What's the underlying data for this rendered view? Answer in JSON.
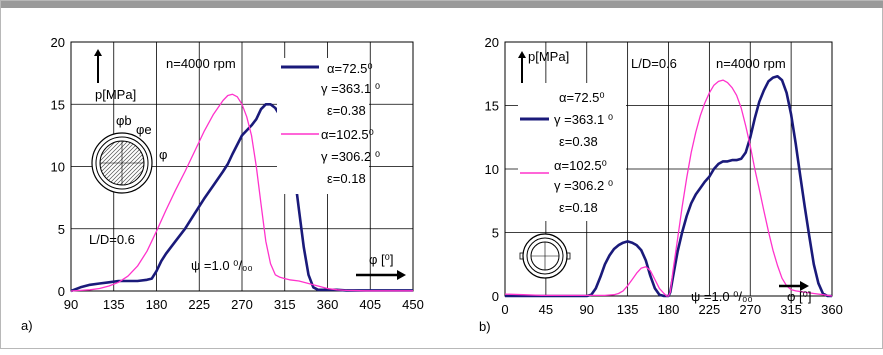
{
  "chart_data": [
    {
      "type": "line",
      "panel_label": "a)",
      "xlim": [
        90,
        450
      ],
      "ylim": [
        0,
        20
      ],
      "x_ticks": [
        90,
        135,
        180,
        225,
        270,
        315,
        360,
        405,
        450
      ],
      "y_ticks": [
        0,
        5,
        10,
        15,
        20
      ],
      "grid": true,
      "ylabel": "p[MPa]",
      "xlabel": "φ [⁰]",
      "annotations": {
        "speed": "n=4000 rpm",
        "ld": "L/D=0.6",
        "psi": "ψ   =1.0 ⁰/₀₀",
        "legend_lines": [
          "α=72.5⁰",
          "γ =363.1 ⁰",
          "ε=0.38",
          "α=102.5⁰",
          "γ =306.2 ⁰",
          "ε=0.18"
        ]
      },
      "series": [
        {
          "color": "#1a1a7a",
          "width": 2.6,
          "x": [
            90,
            100,
            110,
            120,
            130,
            140,
            150,
            160,
            170,
            175,
            180,
            185,
            190,
            200,
            210,
            220,
            230,
            240,
            250,
            255,
            260,
            270,
            280,
            285,
            290,
            295,
            300,
            305,
            310,
            315,
            320,
            325,
            330,
            335,
            340,
            345,
            350,
            360,
            370,
            380,
            400,
            420,
            440,
            450
          ],
          "y": [
            0,
            0.3,
            0.5,
            0.6,
            0.7,
            0.8,
            0.8,
            0.8,
            0.9,
            1.0,
            1.6,
            2.4,
            3.0,
            4.0,
            5.0,
            6.2,
            7.4,
            8.5,
            9.6,
            10.2,
            11.0,
            12.5,
            13.3,
            13.8,
            14.6,
            15.0,
            15.0,
            14.7,
            14.1,
            13.0,
            11.5,
            9.5,
            6.5,
            3.5,
            1.3,
            0.3,
            0.1,
            0.1,
            0.1,
            0.05,
            0.05,
            0.05,
            0.05,
            0.05
          ]
        },
        {
          "color": "#ff33cc",
          "width": 1.3,
          "x": [
            90,
            100,
            110,
            120,
            130,
            140,
            150,
            160,
            170,
            180,
            190,
            200,
            210,
            220,
            230,
            240,
            250,
            255,
            260,
            265,
            270,
            275,
            280,
            285,
            290,
            295,
            300,
            305,
            310,
            315,
            320,
            330,
            340,
            350,
            360,
            370,
            380,
            400,
            420,
            450
          ],
          "y": [
            0,
            0.05,
            0.1,
            0.2,
            0.4,
            0.7,
            1.2,
            2.0,
            3.2,
            4.8,
            6.5,
            8.1,
            9.6,
            11.2,
            12.8,
            14.2,
            15.3,
            15.7,
            15.8,
            15.6,
            15.0,
            14.0,
            12.5,
            10.0,
            7.0,
            4.0,
            2.2,
            1.3,
            1.1,
            1.0,
            0.9,
            0.8,
            0.6,
            0.4,
            0.2,
            0.1,
            0.05,
            0.02,
            0.02,
            0.02
          ]
        }
      ]
    },
    {
      "type": "line",
      "panel_label": "b)",
      "xlim": [
        0,
        360
      ],
      "ylim": [
        0,
        20
      ],
      "x_ticks": [
        0,
        45,
        90,
        135,
        180,
        225,
        270,
        315,
        360
      ],
      "y_ticks": [
        0,
        5,
        10,
        15,
        20
      ],
      "grid": true,
      "ylabel": "p[MPa]",
      "xlabel": "φ [⁰]",
      "annotations": {
        "speed": "n=4000 rpm",
        "ld": "L/D=0.6",
        "psi": "ψ   =1.0 ⁰/₀₀",
        "legend_lines": [
          "α=72.5⁰",
          "γ =363.1 ⁰",
          "ε=0.38",
          "α=102.5⁰",
          "γ =306.2 ⁰",
          "ε=0.18"
        ]
      },
      "series": [
        {
          "color": "#1a1a7a",
          "width": 2.6,
          "x": [
            0,
            90,
            95,
            100,
            105,
            110,
            115,
            120,
            125,
            130,
            135,
            140,
            145,
            150,
            155,
            160,
            165,
            170,
            175,
            180,
            182,
            185,
            190,
            195,
            200,
            205,
            210,
            215,
            220,
            225,
            230,
            235,
            240,
            245,
            250,
            255,
            260,
            265,
            270,
            275,
            280,
            285,
            290,
            295,
            300,
            305,
            310,
            315,
            320,
            325,
            330,
            335,
            340,
            345,
            350,
            355,
            360
          ],
          "y": [
            0,
            0,
            0.1,
            0.6,
            1.5,
            2.5,
            3.2,
            3.7,
            4.0,
            4.2,
            4.3,
            4.2,
            4.0,
            3.6,
            2.8,
            1.6,
            0.6,
            0.1,
            0,
            0,
            0.3,
            1.5,
            3.5,
            5.0,
            6.3,
            7.3,
            8.0,
            8.5,
            9.0,
            9.4,
            10.0,
            10.4,
            10.6,
            10.6,
            10.7,
            10.7,
            10.8,
            11.3,
            12.5,
            14.0,
            15.3,
            16.2,
            16.9,
            17.2,
            17.3,
            17.0,
            16.0,
            14.3,
            12.0,
            9.5,
            7.0,
            4.7,
            2.5,
            1.0,
            0.2,
            0,
            0
          ]
        },
        {
          "color": "#ff33cc",
          "width": 1.3,
          "x": [
            0,
            20,
            40,
            60,
            80,
            100,
            110,
            120,
            125,
            130,
            135,
            140,
            145,
            150,
            155,
            160,
            165,
            170,
            175,
            178,
            180,
            182,
            185,
            190,
            195,
            200,
            205,
            210,
            215,
            220,
            225,
            230,
            235,
            240,
            245,
            250,
            255,
            260,
            265,
            270,
            275,
            280,
            285,
            290,
            295,
            300,
            305,
            310,
            315,
            320,
            330,
            340,
            350,
            360
          ],
          "y": [
            0.15,
            0.1,
            0.05,
            0.05,
            0.05,
            0.05,
            0.05,
            0.1,
            0.2,
            0.4,
            0.8,
            1.3,
            1.8,
            2.2,
            2.3,
            2.0,
            1.3,
            0.6,
            0.2,
            0,
            0,
            0.3,
            2.0,
            4.5,
            7.0,
            9.3,
            11.3,
            12.9,
            14.2,
            15.2,
            16.0,
            16.6,
            16.9,
            17.0,
            16.8,
            16.4,
            15.8,
            14.8,
            13.4,
            11.8,
            10.0,
            8.4,
            6.7,
            5.1,
            3.6,
            2.4,
            1.4,
            0.8,
            0.5,
            0.4,
            0.3,
            0.2,
            0.1,
            0
          ]
        }
      ]
    }
  ]
}
